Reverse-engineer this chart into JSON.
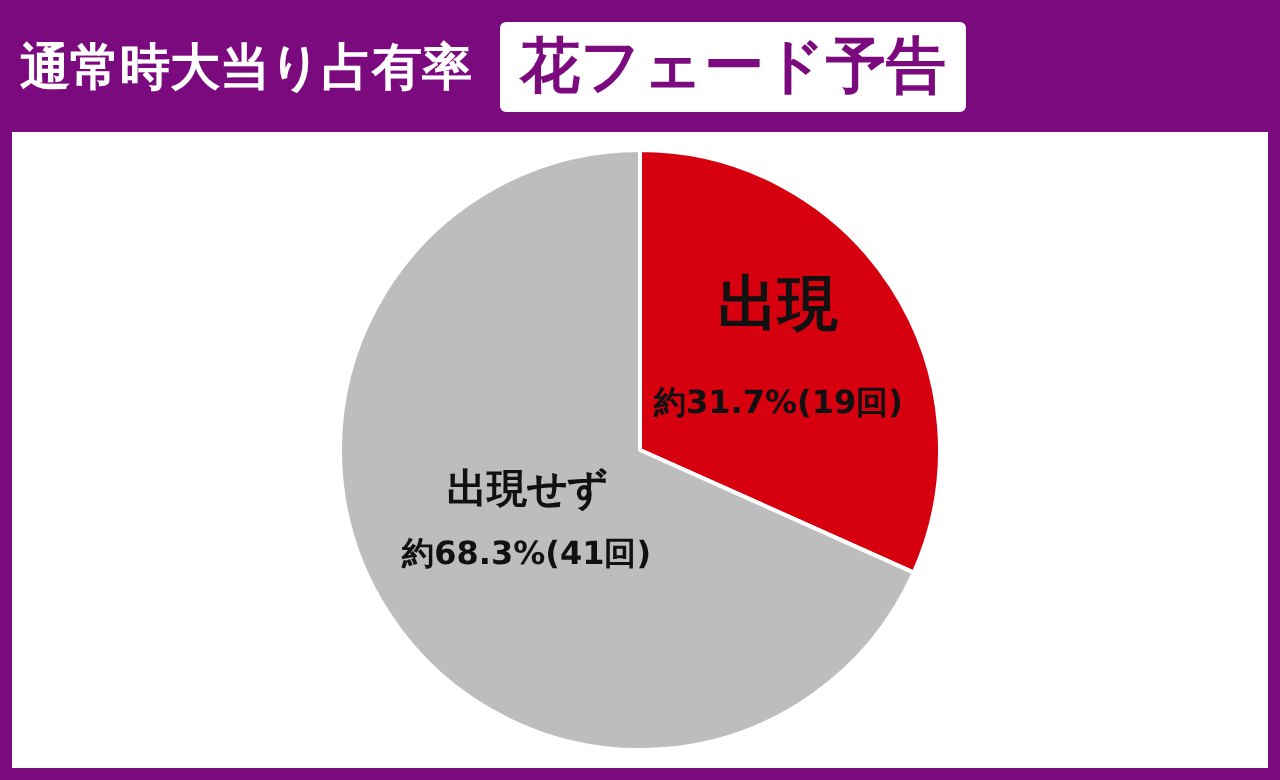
{
  "chart_data": {
    "type": "pie",
    "title": "通常時大当り占有率",
    "subtitle": "花フェード予告",
    "categories": [
      "出現",
      "出現せず"
    ],
    "values": [
      31.7,
      68.3
    ],
    "colors": [
      "#d7000f",
      "#bdbdbd"
    ],
    "value_labels": [
      "約31.7%(19回)",
      "約68.3%(41回)"
    ],
    "legend": false
  }
}
